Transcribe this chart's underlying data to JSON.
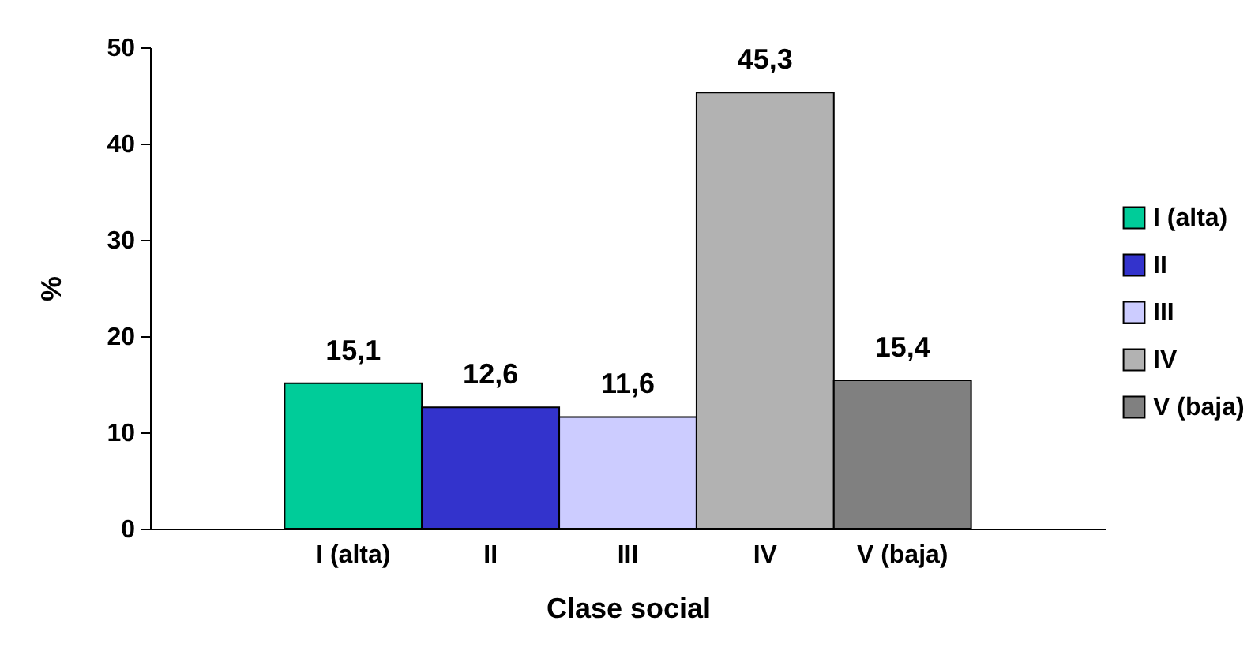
{
  "chart_data": {
    "type": "bar",
    "xlabel": "Clase social",
    "ylabel": "%",
    "stacked": true,
    "categories": [
      "I (alta)",
      "II",
      "III",
      "IV",
      "V (baja)"
    ],
    "series": [
      {
        "name": "I (alta)",
        "color": "#00cc99",
        "values": [
          15.1,
          null,
          null,
          null,
          null
        ],
        "value_labels": [
          "15,1",
          null,
          null,
          null,
          null
        ]
      },
      {
        "name": "II",
        "color": "#3333cc",
        "values": [
          null,
          12.6,
          null,
          null,
          null
        ],
        "value_labels": [
          null,
          "12,6",
          null,
          null,
          null
        ]
      },
      {
        "name": "III",
        "color": "#ccccff",
        "values": [
          null,
          null,
          11.6,
          null,
          null
        ],
        "value_labels": [
          null,
          null,
          "11,6",
          null,
          null
        ]
      },
      {
        "name": "IV",
        "color": "#b2b2b2",
        "values": [
          null,
          null,
          null,
          45.3,
          null
        ],
        "value_labels": [
          null,
          null,
          null,
          "45,3",
          null
        ]
      },
      {
        "name": "V (baja)",
        "color": "#808080",
        "values": [
          null,
          null,
          null,
          null,
          15.4
        ],
        "value_labels": [
          null,
          null,
          null,
          null,
          "15,4"
        ]
      }
    ],
    "ylim": [
      0,
      50
    ],
    "yticks": [
      0,
      10,
      20,
      30,
      40,
      50
    ],
    "grid": false,
    "legend": "right"
  }
}
